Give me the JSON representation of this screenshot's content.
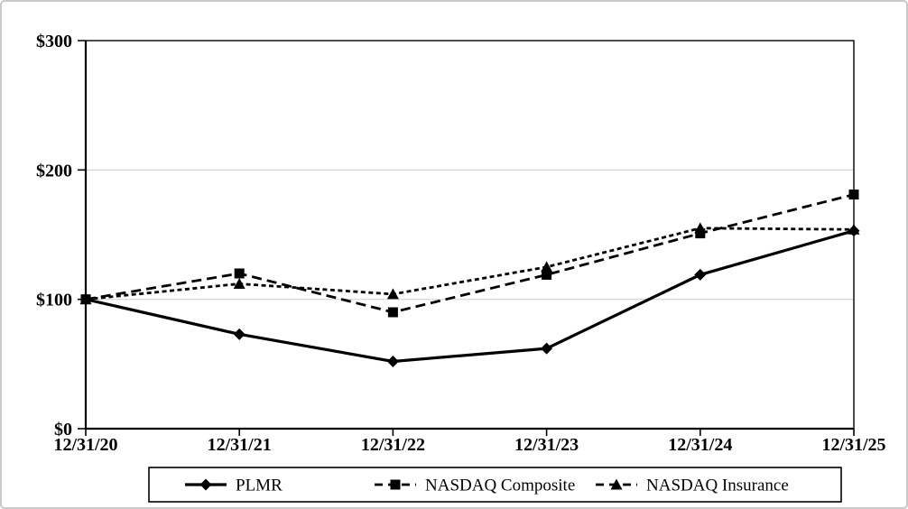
{
  "figure": {
    "background_color": "#ffffff",
    "frame_border_color": "#c9c9c9",
    "line_color": "#000000",
    "gridline_color": "#dadada",
    "axis_color": "#000000"
  },
  "chart_data": {
    "type": "line",
    "title": "",
    "xlabel": "",
    "ylabel": "",
    "categories": [
      "12/31/20",
      "12/31/21",
      "12/31/22",
      "12/31/23",
      "12/31/24",
      "12/31/25"
    ],
    "y_tick_labels": [
      "$0",
      "$100",
      "$200",
      "$300"
    ],
    "y_tick_values": [
      0,
      100,
      200,
      300
    ],
    "ylim": [
      0,
      300
    ],
    "grid": "horizontal gridlines at 100 and 200",
    "legend_position": "bottom-center boxed",
    "series": [
      {
        "name": "PLMR",
        "marker": "diamond",
        "line_style": "solid",
        "color": "#000000",
        "values": [
          100,
          73,
          52,
          62,
          119,
          153
        ]
      },
      {
        "name": "NASDAQ Composite",
        "marker": "square",
        "line_style": "long-dash",
        "color": "#000000",
        "values": [
          100,
          120,
          90,
          119,
          151,
          181
        ]
      },
      {
        "name": "NASDAQ Insurance",
        "marker": "triangle",
        "line_style": "short-dash",
        "color": "#000000",
        "values": [
          100,
          112,
          104,
          125,
          155,
          154
        ]
      }
    ]
  }
}
